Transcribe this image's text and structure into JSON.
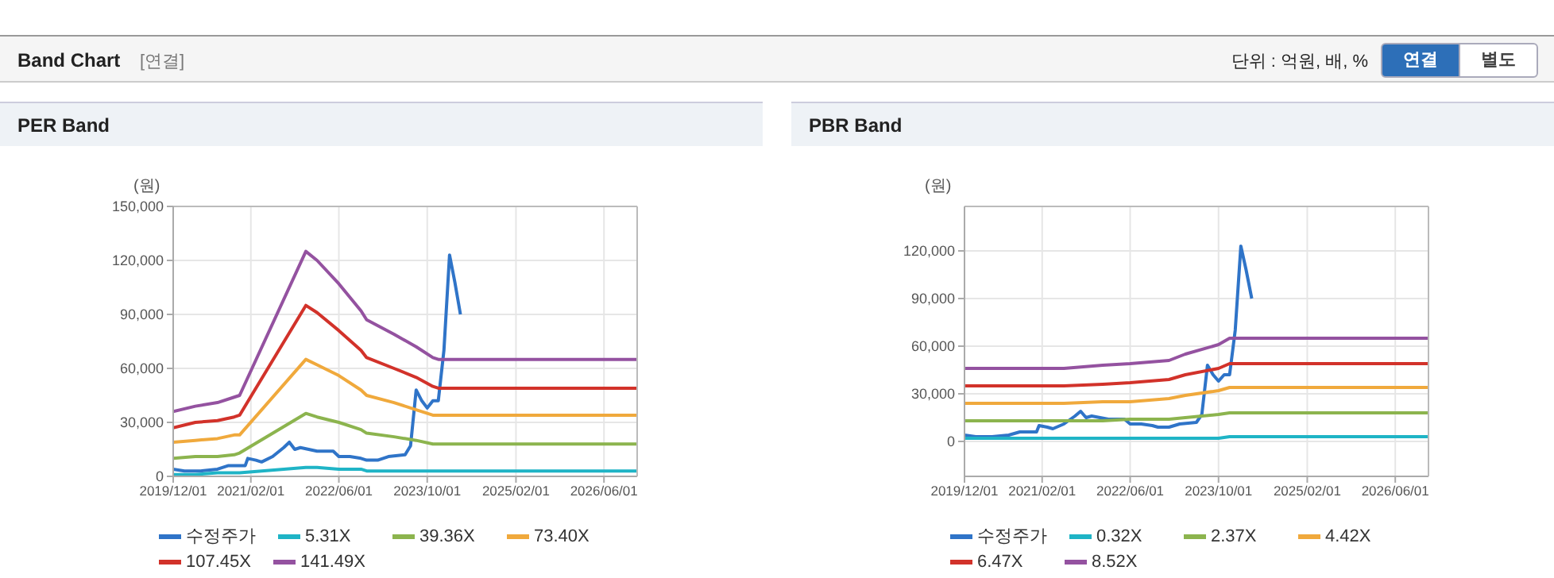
{
  "chart_data": [
    {
      "type": "other",
      "title": "Band Chart",
      "subtitle": "[연결]",
      "annotations": [
        "단위 : 억원, 배, %",
        "연결",
        "별도"
      ]
    },
    {
      "type": "line",
      "title": "PER Band",
      "ylabel": "(원)",
      "xlim": [
        "2019-12-01",
        "2026-12-01"
      ],
      "xticks": [
        {
          "value": "2019-12-01",
          "label": "2019/12/01"
        },
        {
          "value": "2021-02-01",
          "label": "2021/02/01"
        },
        {
          "value": "2022-06-01",
          "label": "2022/06/01"
        },
        {
          "value": "2023-10-01",
          "label": "2023/10/01"
        },
        {
          "value": "2025-02-01",
          "label": "2025/02/01"
        },
        {
          "value": "2026-06-01",
          "label": "2026/06/01"
        }
      ],
      "ylim": [
        0,
        150000
      ],
      "yticks": [
        0,
        {
          "value": 30000,
          "label": "30,000"
        },
        {
          "value": 60000,
          "label": "60,000"
        },
        {
          "value": 90000,
          "label": "90,000"
        },
        {
          "value": 120000,
          "label": "120,000"
        },
        {
          "value": 150000,
          "label": "150,000"
        }
      ],
      "grid": true,
      "legend": "bottom",
      "marker": "none",
      "series": [
        {
          "name": "수정주가",
          "color": "#2f74c8",
          "x": [
            "2019-12-01",
            "2020-02-01",
            "2020-05-01",
            "2020-08-01",
            "2020-10-01",
            "2021-01-01",
            "2021-01-15",
            "2021-03-01",
            "2021-04-01",
            "2021-06-01",
            "2021-08-01",
            "2021-09-01",
            "2021-10-01",
            "2021-11-01",
            "2022-02-01",
            "2022-05-01",
            "2022-06-01",
            "2022-08-01",
            "2022-10-01",
            "2022-11-01",
            "2023-01-01",
            "2023-03-01",
            "2023-06-01",
            "2023-07-01",
            "2023-08-01",
            "2023-09-01",
            "2023-10-01",
            "2023-11-01",
            "2023-12-01",
            "2024-01-01",
            "2024-02-01",
            "2024-03-01",
            "2024-04-01"
          ],
          "values": [
            4000,
            3000,
            3000,
            4000,
            6000,
            6000,
            10000,
            9000,
            8000,
            11000,
            16000,
            19000,
            15000,
            16000,
            14000,
            14000,
            11000,
            11000,
            10000,
            9000,
            9000,
            11000,
            12000,
            17000,
            48000,
            42000,
            38000,
            42000,
            42000,
            70000,
            123000,
            108000,
            90000
          ]
        },
        {
          "name": "5.31X",
          "color": "#1fb4c6",
          "x": [
            "2019-12-01",
            "2020-04-01",
            "2020-08-01",
            "2020-11-01",
            "2020-12-01",
            "2021-12-01",
            "2022-02-01",
            "2022-06-01",
            "2022-10-01",
            "2022-11-01",
            "2023-04-01",
            "2023-08-01",
            "2023-11-01",
            "2023-12-01",
            "2026-12-01"
          ],
          "values": [
            1000,
            1000,
            2000,
            2000,
            2000,
            5000,
            5000,
            4000,
            4000,
            3000,
            3000,
            3000,
            3000,
            3000,
            3000
          ]
        },
        {
          "name": "39.36X",
          "color": "#8cb44e",
          "x": [
            "2019-12-01",
            "2020-04-01",
            "2020-08-01",
            "2020-11-01",
            "2020-12-01",
            "2021-12-01",
            "2022-02-01",
            "2022-06-01",
            "2022-10-01",
            "2022-11-01",
            "2023-04-01",
            "2023-08-01",
            "2023-11-01",
            "2023-12-01",
            "2026-12-01"
          ],
          "values": [
            10000,
            11000,
            11000,
            12000,
            13000,
            35000,
            33000,
            30000,
            26000,
            24000,
            22000,
            20000,
            18000,
            18000,
            18000
          ]
        },
        {
          "name": "73.40X",
          "color": "#f0a93c",
          "x": [
            "2019-12-01",
            "2020-04-01",
            "2020-08-01",
            "2020-11-01",
            "2020-12-01",
            "2021-12-01",
            "2022-02-01",
            "2022-06-01",
            "2022-10-01",
            "2022-11-01",
            "2023-04-01",
            "2023-08-01",
            "2023-11-01",
            "2023-12-01",
            "2026-12-01"
          ],
          "values": [
            19000,
            20000,
            21000,
            23000,
            23000,
            65000,
            62000,
            56000,
            48000,
            45000,
            41000,
            37000,
            34000,
            34000,
            34000
          ]
        },
        {
          "name": "107.45X",
          "color": "#d2322a",
          "x": [
            "2019-12-01",
            "2020-04-01",
            "2020-08-01",
            "2020-11-01",
            "2020-12-01",
            "2021-12-01",
            "2022-02-01",
            "2022-06-01",
            "2022-10-01",
            "2022-11-01",
            "2023-04-01",
            "2023-08-01",
            "2023-11-01",
            "2023-12-01",
            "2026-12-01"
          ],
          "values": [
            27000,
            30000,
            31000,
            33000,
            34000,
            95000,
            91000,
            81000,
            70000,
            66000,
            60000,
            55000,
            50000,
            49000,
            49000
          ]
        },
        {
          "name": "141.49X",
          "color": "#9452a0",
          "x": [
            "2019-12-01",
            "2020-04-01",
            "2020-08-01",
            "2020-11-01",
            "2020-12-01",
            "2021-12-01",
            "2022-02-01",
            "2022-06-01",
            "2022-10-01",
            "2022-11-01",
            "2023-04-01",
            "2023-08-01",
            "2023-11-01",
            "2023-12-01",
            "2026-12-01"
          ],
          "values": [
            36000,
            39000,
            41000,
            44000,
            45000,
            125000,
            120000,
            107000,
            92000,
            87000,
            79000,
            72000,
            66000,
            65000,
            65000
          ]
        }
      ]
    },
    {
      "type": "line",
      "title": "PBR Band",
      "ylabel": "(원)",
      "xlim": [
        "2019-12-01",
        "2026-12-01"
      ],
      "xticks": [
        {
          "value": "2019-12-01",
          "label": "2019/12/01"
        },
        {
          "value": "2021-02-01",
          "label": "2021/02/01"
        },
        {
          "value": "2022-06-01",
          "label": "2022/06/01"
        },
        {
          "value": "2023-10-01",
          "label": "2023/10/01"
        },
        {
          "value": "2025-02-01",
          "label": "2025/02/01"
        },
        {
          "value": "2026-06-01",
          "label": "2026/06/01"
        }
      ],
      "ylim": [
        -22000,
        148000
      ],
      "yticks": [
        0,
        {
          "value": 30000,
          "label": "30,000"
        },
        {
          "value": 60000,
          "label": "60,000"
        },
        {
          "value": 90000,
          "label": "90,000"
        },
        {
          "value": 120000,
          "label": "120,000"
        }
      ],
      "grid": true,
      "legend": "bottom",
      "marker": "none",
      "series": [
        {
          "name": "수정주가",
          "color": "#2f74c8",
          "x": [
            "2019-12-01",
            "2020-02-01",
            "2020-05-01",
            "2020-08-01",
            "2020-10-01",
            "2021-01-01",
            "2021-01-15",
            "2021-03-01",
            "2021-04-01",
            "2021-06-01",
            "2021-08-01",
            "2021-09-01",
            "2021-10-01",
            "2021-11-01",
            "2022-02-01",
            "2022-05-01",
            "2022-06-01",
            "2022-08-01",
            "2022-10-01",
            "2022-11-01",
            "2023-01-01",
            "2023-03-01",
            "2023-06-01",
            "2023-07-01",
            "2023-08-01",
            "2023-09-01",
            "2023-10-01",
            "2023-11-01",
            "2023-12-01",
            "2024-01-01",
            "2024-02-01",
            "2024-03-01",
            "2024-04-01"
          ],
          "values": [
            4000,
            3000,
            3000,
            4000,
            6000,
            6000,
            10000,
            9000,
            8000,
            11000,
            16000,
            19000,
            15000,
            16000,
            14000,
            14000,
            11000,
            11000,
            10000,
            9000,
            9000,
            11000,
            12000,
            17000,
            48000,
            42000,
            38000,
            42000,
            42000,
            70000,
            123000,
            108000,
            90000
          ]
        },
        {
          "name": "0.32X",
          "color": "#1fb4c6",
          "x": [
            "2019-12-01",
            "2021-06-01",
            "2022-01-01",
            "2022-06-01",
            "2023-01-01",
            "2023-04-01",
            "2023-10-01",
            "2023-12-01",
            "2026-12-01"
          ],
          "values": [
            2000,
            2000,
            2000,
            2000,
            2000,
            2000,
            2000,
            3000,
            3000
          ]
        },
        {
          "name": "2.37X",
          "color": "#8cb44e",
          "x": [
            "2019-12-01",
            "2021-06-01",
            "2022-01-01",
            "2022-06-01",
            "2023-01-01",
            "2023-04-01",
            "2023-10-01",
            "2023-12-01",
            "2026-12-01"
          ],
          "values": [
            13000,
            13000,
            13000,
            14000,
            14000,
            15000,
            17000,
            18000,
            18000
          ]
        },
        {
          "name": "4.42X",
          "color": "#f0a93c",
          "x": [
            "2019-12-01",
            "2021-06-01",
            "2022-01-01",
            "2022-06-01",
            "2023-01-01",
            "2023-04-01",
            "2023-10-01",
            "2023-12-01",
            "2026-12-01"
          ],
          "values": [
            24000,
            24000,
            25000,
            25000,
            27000,
            29000,
            32000,
            34000,
            34000
          ]
        },
        {
          "name": "6.47X",
          "color": "#d2322a",
          "x": [
            "2019-12-01",
            "2021-06-01",
            "2022-01-01",
            "2022-06-01",
            "2023-01-01",
            "2023-04-01",
            "2023-10-01",
            "2023-12-01",
            "2026-12-01"
          ],
          "values": [
            35000,
            35000,
            36000,
            37000,
            39000,
            42000,
            46000,
            49000,
            49000
          ]
        },
        {
          "name": "8.52X",
          "color": "#9452a0",
          "x": [
            "2019-12-01",
            "2021-06-01",
            "2022-01-01",
            "2022-06-01",
            "2023-01-01",
            "2023-04-01",
            "2023-10-01",
            "2023-12-01",
            "2026-12-01"
          ],
          "values": [
            46000,
            46000,
            48000,
            49000,
            51000,
            55000,
            61000,
            65000,
            65000
          ]
        }
      ]
    }
  ]
}
